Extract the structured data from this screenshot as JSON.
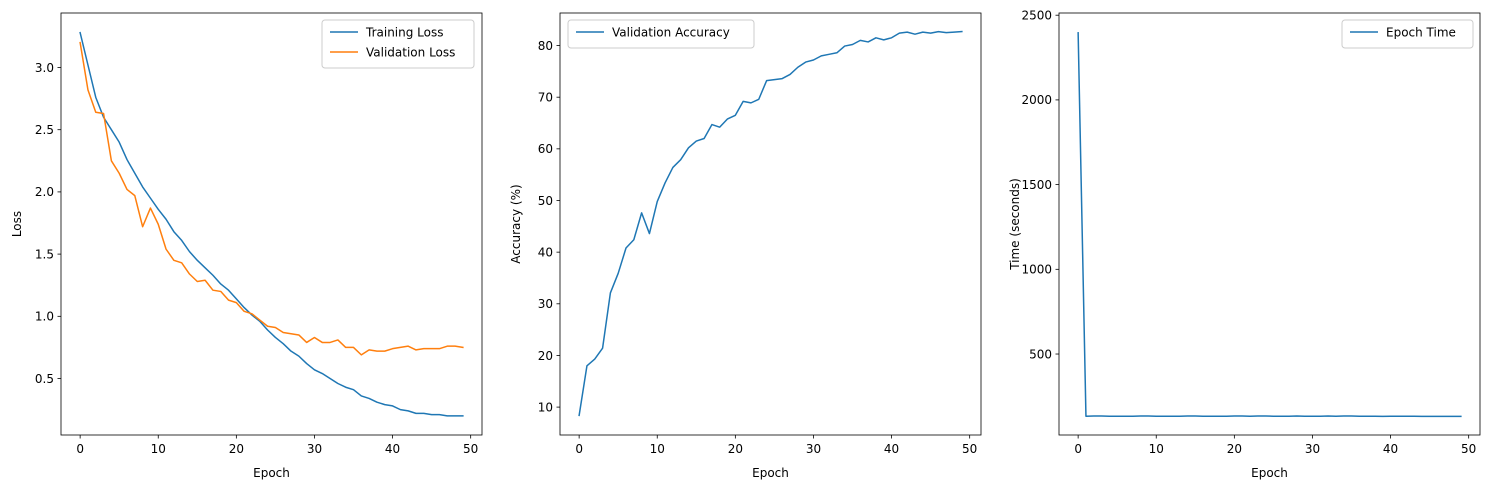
{
  "chart_data": [
    {
      "type": "line",
      "title": "",
      "xlabel": "Epoch",
      "ylabel": "Loss",
      "xlim": [
        -2.45,
        51.45
      ],
      "ylim": [
        0.046,
        3.438
      ],
      "xticks": [
        0,
        10,
        20,
        30,
        40,
        50
      ],
      "yticks": [
        0.5,
        1.0,
        1.5,
        2.0,
        2.5,
        3.0
      ],
      "ytick_labels": [
        "0.5",
        "1.0",
        "1.5",
        "2.0",
        "2.5",
        "3.0"
      ],
      "legend": "top-right",
      "grid": false,
      "series": [
        {
          "name": "Training Loss",
          "color": "#1f77b4",
          "x": [
            0,
            1,
            2,
            3,
            4,
            5,
            6,
            7,
            8,
            9,
            10,
            11,
            12,
            13,
            14,
            15,
            16,
            17,
            18,
            19,
            20,
            21,
            22,
            23,
            24,
            25,
            26,
            27,
            28,
            29,
            30,
            31,
            32,
            33,
            34,
            35,
            36,
            37,
            38,
            39,
            40,
            41,
            42,
            43,
            44,
            45,
            46,
            47,
            48,
            49
          ],
          "values": [
            3.28,
            3.02,
            2.76,
            2.6,
            2.5,
            2.4,
            2.26,
            2.15,
            2.04,
            1.95,
            1.86,
            1.78,
            1.68,
            1.61,
            1.52,
            1.45,
            1.39,
            1.33,
            1.26,
            1.21,
            1.14,
            1.07,
            1.01,
            0.96,
            0.89,
            0.83,
            0.78,
            0.72,
            0.68,
            0.62,
            0.57,
            0.54,
            0.5,
            0.46,
            0.43,
            0.41,
            0.36,
            0.34,
            0.31,
            0.29,
            0.28,
            0.25,
            0.24,
            0.22,
            0.22,
            0.21,
            0.21,
            0.2,
            0.2,
            0.2
          ]
        },
        {
          "name": "Validation Loss",
          "color": "#ff7f0e",
          "x": [
            0,
            1,
            2,
            3,
            4,
            5,
            6,
            7,
            8,
            9,
            10,
            11,
            12,
            13,
            14,
            15,
            16,
            17,
            18,
            19,
            20,
            21,
            22,
            23,
            24,
            25,
            26,
            27,
            28,
            29,
            30,
            31,
            32,
            33,
            34,
            35,
            36,
            37,
            38,
            39,
            40,
            41,
            42,
            43,
            44,
            45,
            46,
            47,
            48,
            49
          ],
          "values": [
            3.2,
            2.82,
            2.64,
            2.63,
            2.25,
            2.15,
            2.02,
            1.97,
            1.72,
            1.87,
            1.74,
            1.54,
            1.45,
            1.43,
            1.34,
            1.28,
            1.29,
            1.21,
            1.2,
            1.13,
            1.11,
            1.04,
            1.02,
            0.97,
            0.92,
            0.91,
            0.87,
            0.86,
            0.85,
            0.79,
            0.83,
            0.79,
            0.79,
            0.81,
            0.75,
            0.75,
            0.69,
            0.73,
            0.72,
            0.72,
            0.74,
            0.75,
            0.76,
            0.73,
            0.74,
            0.74,
            0.74,
            0.76,
            0.76,
            0.75
          ]
        }
      ]
    },
    {
      "type": "line",
      "title": "",
      "xlabel": "Epoch",
      "ylabel": "Accuracy (%)",
      "xlim": [
        -2.45,
        51.45
      ],
      "ylim": [
        4.6,
        86.3
      ],
      "xticks": [
        0,
        10,
        20,
        30,
        40,
        50
      ],
      "yticks": [
        10,
        20,
        30,
        40,
        50,
        60,
        70,
        80
      ],
      "ytick_labels": [
        "10",
        "20",
        "30",
        "40",
        "50",
        "60",
        "70",
        "80"
      ],
      "legend": "top-left",
      "grid": false,
      "series": [
        {
          "name": "Validation Accuracy",
          "color": "#1f77b4",
          "x": [
            0,
            1,
            2,
            3,
            4,
            5,
            6,
            7,
            8,
            9,
            10,
            11,
            12,
            13,
            14,
            15,
            16,
            17,
            18,
            19,
            20,
            21,
            22,
            23,
            24,
            25,
            26,
            27,
            28,
            29,
            30,
            31,
            32,
            33,
            34,
            35,
            36,
            37,
            38,
            39,
            40,
            41,
            42,
            43,
            44,
            45,
            46,
            47,
            48,
            49
          ],
          "values": [
            8.4,
            18.0,
            19.3,
            21.4,
            32.1,
            35.9,
            40.8,
            42.4,
            47.6,
            43.6,
            49.8,
            53.4,
            56.4,
            57.9,
            60.2,
            61.5,
            62.0,
            64.7,
            64.2,
            65.8,
            66.5,
            69.2,
            68.9,
            69.6,
            73.2,
            73.4,
            73.6,
            74.4,
            75.8,
            76.8,
            77.2,
            78.0,
            78.3,
            78.6,
            79.9,
            80.2,
            81.0,
            80.7,
            81.5,
            81.1,
            81.5,
            82.4,
            82.6,
            82.2,
            82.6,
            82.4,
            82.7,
            82.5,
            82.6,
            82.7
          ]
        }
      ]
    },
    {
      "type": "line",
      "title": "",
      "xlabel": "Epoch",
      "ylabel": "Time (seconds)",
      "xlim": [
        -2.45,
        51.45
      ],
      "ylim": [
        22,
        2513
      ],
      "xticks": [
        0,
        10,
        20,
        30,
        40,
        50
      ],
      "yticks": [
        500,
        1000,
        1500,
        2000,
        2500
      ],
      "ytick_labels": [
        "500",
        "1000",
        "1500",
        "2000",
        "2500"
      ],
      "legend": "top-right",
      "grid": false,
      "series": [
        {
          "name": "Epoch Time",
          "color": "#1f77b4",
          "x": [
            0,
            1,
            2,
            3,
            4,
            5,
            6,
            7,
            8,
            9,
            10,
            11,
            12,
            13,
            14,
            15,
            16,
            17,
            18,
            19,
            20,
            21,
            22,
            23,
            24,
            25,
            26,
            27,
            28,
            29,
            30,
            31,
            32,
            33,
            34,
            35,
            36,
            37,
            38,
            39,
            40,
            41,
            42,
            43,
            44,
            45,
            46,
            47,
            48,
            49
          ],
          "values": [
            2396,
            133,
            134,
            134,
            133,
            133,
            133,
            133,
            134,
            134,
            133,
            133,
            133,
            133,
            134,
            134,
            133,
            133,
            133,
            133,
            134,
            134,
            133,
            134,
            134,
            133,
            133,
            133,
            134,
            133,
            133,
            133,
            134,
            133,
            134,
            134,
            133,
            133,
            133,
            132,
            133,
            133,
            133,
            133,
            132,
            132,
            132,
            132,
            132,
            132
          ]
        }
      ]
    }
  ]
}
